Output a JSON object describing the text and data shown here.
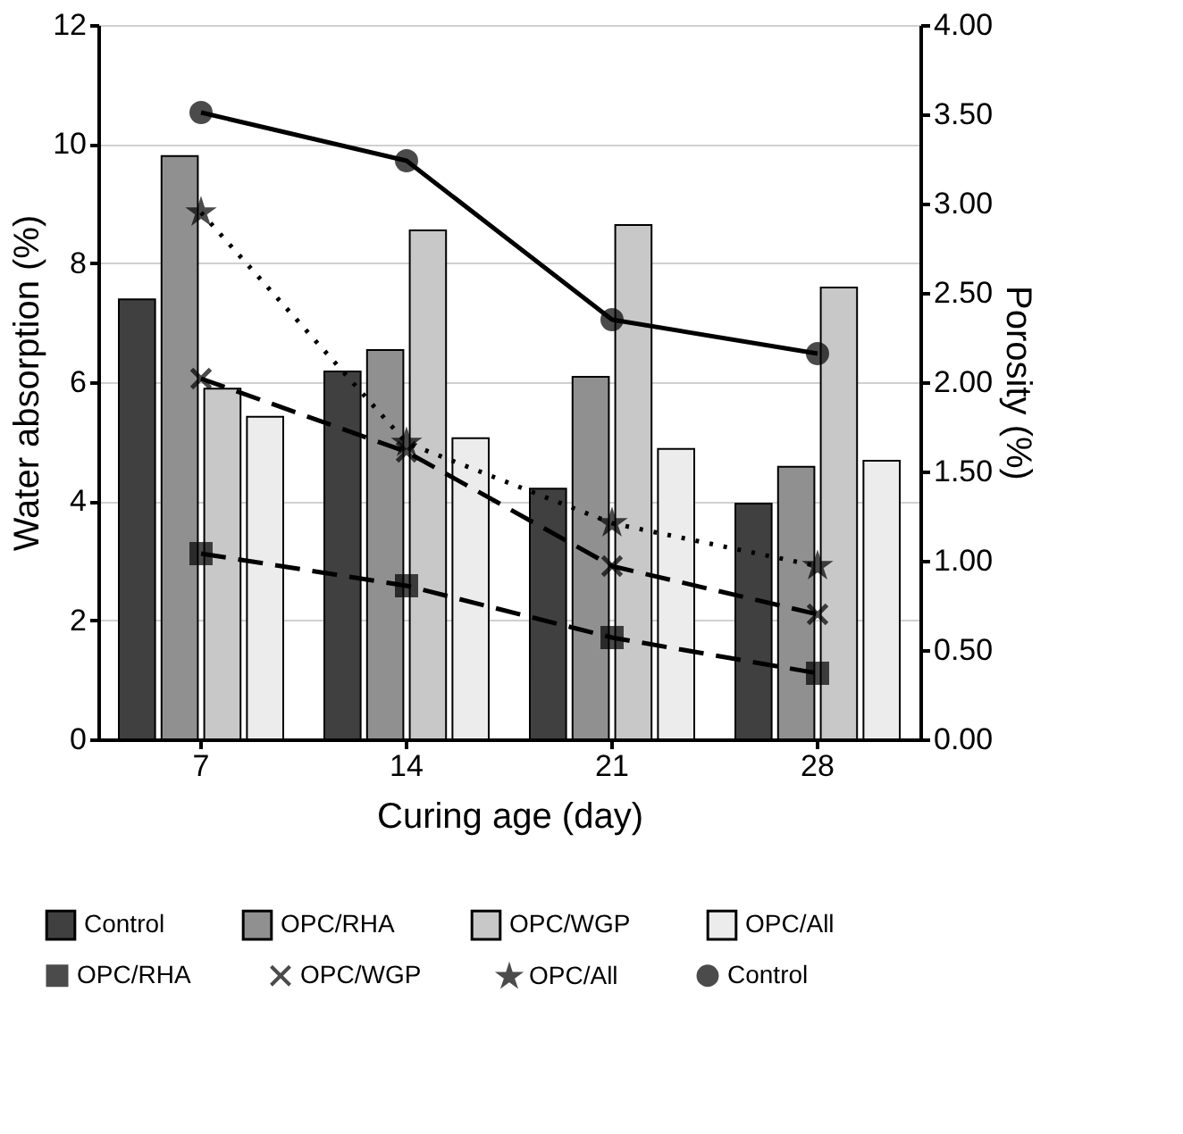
{
  "chart_data": {
    "type": "bar",
    "categories": [
      "7",
      "14",
      "21",
      "28"
    ],
    "xlabel": "Curing age (day)",
    "ylabel": "Water absorption (%)",
    "y2label": "Porosity (%)",
    "ylim": [
      0,
      12
    ],
    "yticks": [
      0,
      2,
      4,
      6,
      8,
      10,
      12
    ],
    "y2lim": [
      0,
      4
    ],
    "y2ticks": [
      {
        "value": 0,
        "label": "0.00"
      },
      {
        "value": 0.5,
        "label": "0.50"
      },
      {
        "value": 1,
        "label": "1.00"
      },
      {
        "value": 1.5,
        "label": "1.50"
      },
      {
        "value": 2,
        "label": "2.00"
      },
      {
        "value": 2.5,
        "label": "2.50"
      },
      {
        "value": 3,
        "label": "3.00"
      },
      {
        "value": 3.5,
        "label": "3.50"
      },
      {
        "value": 4,
        "label": "4.00"
      }
    ],
    "grid": "y",
    "legend": "bottom",
    "series": [
      {
        "name": "Control",
        "color": "#404040",
        "values": [
          7.39,
          6.18,
          4.21,
          3.96
        ]
      },
      {
        "name": "OPC/RHA",
        "color": "#909090",
        "values": [
          9.8,
          6.54,
          6.09,
          4.58
        ]
      },
      {
        "name": "OPC/WGP",
        "color": "#c8c8c8",
        "values": [
          5.89,
          8.55,
          8.64,
          7.59
        ]
      },
      {
        "name": "OPC/All",
        "color": "#ececec",
        "values": [
          5.42,
          5.06,
          4.88,
          4.68
        ]
      },
      {
        "name": "OPC/RHA",
        "type": "line",
        "axis": "y2",
        "color": "#000000",
        "marker": "square",
        "line_style": "dashed",
        "values": [
          1.04,
          0.86,
          0.57,
          0.37
        ]
      },
      {
        "name": "OPC/WGP",
        "type": "line",
        "axis": "y2",
        "color": "#000000",
        "marker": "cross",
        "line_style": "dashed",
        "values": [
          2.02,
          1.61,
          0.97,
          0.7
        ]
      },
      {
        "name": "OPC/All",
        "type": "line",
        "axis": "y2",
        "color": "#000000",
        "marker": "star",
        "line_style": "dotted",
        "values": [
          2.95,
          1.66,
          1.21,
          0.97
        ]
      },
      {
        "name": "Control",
        "type": "line",
        "axis": "y2",
        "color": "#000000",
        "marker": "circle",
        "line_style": "solid",
        "values": [
          3.51,
          3.24,
          2.35,
          2.16
        ]
      }
    ]
  }
}
